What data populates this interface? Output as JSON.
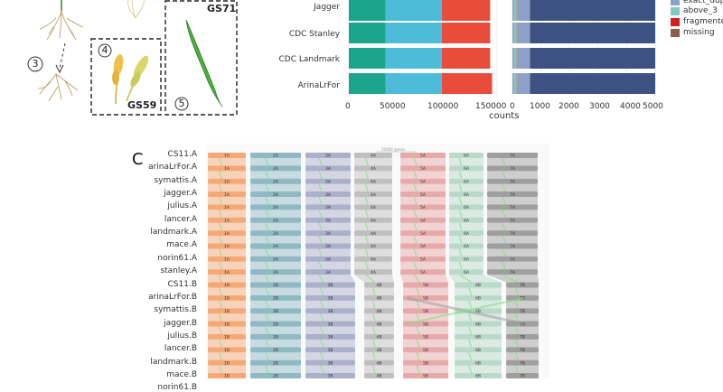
{
  "panel_a": {
    "stages": [
      {
        "number": "3"
      },
      {
        "number": "4",
        "code": "GS59"
      },
      {
        "number": "5",
        "code": "GS71"
      }
    ]
  },
  "chart_data": {
    "type": "bar",
    "orientation": "horizontal",
    "xlabel": "counts",
    "categories": [
      "Jagger",
      "CDC Stanley",
      "CDC Landmark",
      "ArinaLrFor"
    ],
    "left_panel": {
      "xlim": [
        0,
        150000
      ],
      "ticks": [
        "0",
        "50000",
        "100000",
        "150000"
      ],
      "series": [
        {
          "color": "#1aa58c",
          "values": [
            37000,
            37000,
            37000,
            37000
          ]
        },
        {
          "color": "#4dbcd8",
          "values": [
            57000,
            57000,
            57000,
            57000
          ]
        },
        {
          "color": "#e84c3a",
          "values": [
            49000,
            49000,
            49000,
            51000
          ]
        }
      ]
    },
    "right_panel": {
      "xlim": [
        0,
        5000
      ],
      "ticks": [
        "0",
        "1000",
        "2000",
        "3000",
        "4000",
        "5000"
      ],
      "series": [
        {
          "name": "exact_dup",
          "color": "#8fa0c8",
          "values": [
            60,
            60,
            60,
            60
          ]
        },
        {
          "name": "above_3",
          "color": "#7fcbc0",
          "values": [
            90,
            90,
            90,
            90
          ]
        },
        {
          "name": "fragmented",
          "color": "#d62020",
          "values": [
            15,
            15,
            15,
            15
          ]
        },
        {
          "name": "",
          "color": "#8fa0c8",
          "values": [
            450,
            450,
            450,
            450
          ]
        },
        {
          "name": "",
          "color": "#3d5282",
          "values": [
            4385,
            4385,
            4385,
            4385
          ]
        }
      ]
    },
    "legend": {
      "placement": "right",
      "entries": [
        {
          "label": "exact_dup",
          "color": "#8fa0c8"
        },
        {
          "label": "above_3",
          "color": "#7fcbc0"
        },
        {
          "label": "fragmented",
          "color": "#d62020"
        },
        {
          "label": "missing",
          "color": "#8b5e4a"
        }
      ]
    }
  },
  "panel_c": {
    "letter": "C",
    "scale_label": "10000 genes",
    "a_rows": [
      "CS11.A",
      "arinaLrFor.A",
      "symattis.A",
      "jagger.A",
      "julius.A",
      "lancer.A",
      "landmark.A",
      "mace.A",
      "norin61.A",
      "stanley.A"
    ],
    "b_rows": [
      "CS11.B",
      "arinaLrFor.B",
      "symattis.B",
      "jagger.B",
      "julius.B",
      "lancer.B",
      "landmark.B",
      "mace.B",
      "norin61.B"
    ],
    "a_chromosomes": [
      "1A",
      "2A",
      "3A",
      "4A",
      "5A",
      "6A",
      "7A"
    ],
    "b_chromosomes": [
      "1B",
      "2B",
      "3B",
      "4B",
      "5B",
      "6B",
      "7B"
    ],
    "colors": [
      "#f4a470",
      "#89b5c0",
      "#a6acc8",
      "#bcbcbc",
      "#e6a5a5",
      "#b5d8c8",
      "#9a9a9a"
    ]
  }
}
